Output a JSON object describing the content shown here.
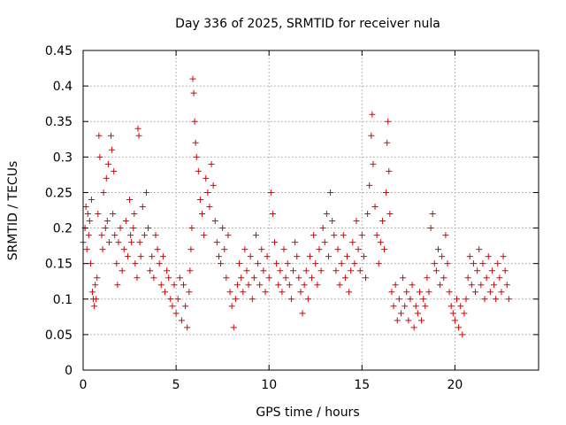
{
  "chart_data": {
    "type": "scatter",
    "title": "Day 336 of 2025, SRMTID for receiver nula",
    "xlabel": "GPS time / hours",
    "ylabel": "SRMTID / TECUs",
    "xlim": [
      0,
      24.5
    ],
    "ylim": [
      0,
      0.45
    ],
    "xticks": [
      0,
      5,
      10,
      15,
      20
    ],
    "xtick_labels": [
      "0",
      "5",
      "10",
      "15",
      "20"
    ],
    "yticks": [
      0,
      0.05,
      0.1,
      0.15,
      0.2,
      0.25,
      0.3,
      0.35,
      0.4,
      0.45
    ],
    "ytick_labels": [
      "0",
      "0.05",
      "0.1",
      "0.15",
      "0.2",
      "0.25",
      "0.3",
      "0.35",
      "0.4",
      "0.45"
    ],
    "grid": true,
    "marker": "plus",
    "series_color": "#e00000",
    "series": [
      {
        "name": "SRMTID",
        "points": [
          [
            0.0,
            0.18
          ],
          [
            0.1,
            0.2
          ],
          [
            0.15,
            0.23
          ],
          [
            0.2,
            0.17
          ],
          [
            0.25,
            0.22
          ],
          [
            0.3,
            0.19
          ],
          [
            0.35,
            0.21
          ],
          [
            0.4,
            0.15
          ],
          [
            0.45,
            0.24
          ],
          [
            0.5,
            0.11
          ],
          [
            0.55,
            0.1
          ],
          [
            0.6,
            0.09
          ],
          [
            0.65,
            0.12
          ],
          [
            0.7,
            0.1
          ],
          [
            0.75,
            0.13
          ],
          [
            0.8,
            0.22
          ],
          [
            0.85,
            0.33
          ],
          [
            0.9,
            0.3
          ],
          [
            1.0,
            0.19
          ],
          [
            1.05,
            0.17
          ],
          [
            1.1,
            0.25
          ],
          [
            1.2,
            0.2
          ],
          [
            1.25,
            0.27
          ],
          [
            1.3,
            0.21
          ],
          [
            1.35,
            0.29
          ],
          [
            1.4,
            0.18
          ],
          [
            1.5,
            0.33
          ],
          [
            1.55,
            0.31
          ],
          [
            1.6,
            0.22
          ],
          [
            1.65,
            0.28
          ],
          [
            1.7,
            0.19
          ],
          [
            1.8,
            0.15
          ],
          [
            1.85,
            0.12
          ],
          [
            1.9,
            0.18
          ],
          [
            2.0,
            0.2
          ],
          [
            2.1,
            0.14
          ],
          [
            2.2,
            0.17
          ],
          [
            2.3,
            0.21
          ],
          [
            2.4,
            0.16
          ],
          [
            2.5,
            0.24
          ],
          [
            2.55,
            0.19
          ],
          [
            2.6,
            0.18
          ],
          [
            2.7,
            0.2
          ],
          [
            2.75,
            0.22
          ],
          [
            2.8,
            0.15
          ],
          [
            2.9,
            0.13
          ],
          [
            2.95,
            0.34
          ],
          [
            3.0,
            0.33
          ],
          [
            3.05,
            0.18
          ],
          [
            3.1,
            0.16
          ],
          [
            3.2,
            0.23
          ],
          [
            3.3,
            0.19
          ],
          [
            3.4,
            0.25
          ],
          [
            3.5,
            0.2
          ],
          [
            3.6,
            0.14
          ],
          [
            3.7,
            0.16
          ],
          [
            3.8,
            0.13
          ],
          [
            3.9,
            0.19
          ],
          [
            4.0,
            0.17
          ],
          [
            4.1,
            0.15
          ],
          [
            4.2,
            0.12
          ],
          [
            4.3,
            0.16
          ],
          [
            4.4,
            0.11
          ],
          [
            4.5,
            0.14
          ],
          [
            4.6,
            0.13
          ],
          [
            4.7,
            0.1
          ],
          [
            4.8,
            0.09
          ],
          [
            4.9,
            0.12
          ],
          [
            5.0,
            0.08
          ],
          [
            5.1,
            0.1
          ],
          [
            5.2,
            0.13
          ],
          [
            5.3,
            0.07
          ],
          [
            5.4,
            0.12
          ],
          [
            5.5,
            0.09
          ],
          [
            5.6,
            0.06
          ],
          [
            5.7,
            0.11
          ],
          [
            5.75,
            0.14
          ],
          [
            5.8,
            0.17
          ],
          [
            5.85,
            0.2
          ],
          [
            5.9,
            0.41
          ],
          [
            5.95,
            0.39
          ],
          [
            6.0,
            0.35
          ],
          [
            6.05,
            0.32
          ],
          [
            6.1,
            0.3
          ],
          [
            6.2,
            0.28
          ],
          [
            6.3,
            0.24
          ],
          [
            6.4,
            0.22
          ],
          [
            6.5,
            0.19
          ],
          [
            6.6,
            0.27
          ],
          [
            6.7,
            0.25
          ],
          [
            6.8,
            0.23
          ],
          [
            6.9,
            0.29
          ],
          [
            7.0,
            0.26
          ],
          [
            7.1,
            0.21
          ],
          [
            7.2,
            0.18
          ],
          [
            7.3,
            0.16
          ],
          [
            7.4,
            0.15
          ],
          [
            7.5,
            0.2
          ],
          [
            7.6,
            0.17
          ],
          [
            7.7,
            0.13
          ],
          [
            7.8,
            0.19
          ],
          [
            7.9,
            0.11
          ],
          [
            8.0,
            0.09
          ],
          [
            8.1,
            0.06
          ],
          [
            8.2,
            0.1
          ],
          [
            8.3,
            0.12
          ],
          [
            8.4,
            0.15
          ],
          [
            8.5,
            0.13
          ],
          [
            8.6,
            0.11
          ],
          [
            8.7,
            0.17
          ],
          [
            8.8,
            0.14
          ],
          [
            8.9,
            0.12
          ],
          [
            9.0,
            0.16
          ],
          [
            9.1,
            0.1
          ],
          [
            9.2,
            0.13
          ],
          [
            9.3,
            0.19
          ],
          [
            9.4,
            0.15
          ],
          [
            9.5,
            0.12
          ],
          [
            9.6,
            0.17
          ],
          [
            9.7,
            0.14
          ],
          [
            9.8,
            0.11
          ],
          [
            9.9,
            0.16
          ],
          [
            10.0,
            0.13
          ],
          [
            10.1,
            0.25
          ],
          [
            10.2,
            0.22
          ],
          [
            10.3,
            0.18
          ],
          [
            10.4,
            0.15
          ],
          [
            10.5,
            0.12
          ],
          [
            10.6,
            0.14
          ],
          [
            10.7,
            0.11
          ],
          [
            10.8,
            0.17
          ],
          [
            10.9,
            0.13
          ],
          [
            11.0,
            0.15
          ],
          [
            11.1,
            0.12
          ],
          [
            11.2,
            0.1
          ],
          [
            11.3,
            0.14
          ],
          [
            11.4,
            0.18
          ],
          [
            11.5,
            0.16
          ],
          [
            11.6,
            0.13
          ],
          [
            11.7,
            0.11
          ],
          [
            11.8,
            0.08
          ],
          [
            11.9,
            0.12
          ],
          [
            12.0,
            0.14
          ],
          [
            12.1,
            0.1
          ],
          [
            12.2,
            0.16
          ],
          [
            12.3,
            0.13
          ],
          [
            12.4,
            0.19
          ],
          [
            12.5,
            0.15
          ],
          [
            12.6,
            0.12
          ],
          [
            12.7,
            0.17
          ],
          [
            12.8,
            0.14
          ],
          [
            12.9,
            0.2
          ],
          [
            13.0,
            0.18
          ],
          [
            13.1,
            0.22
          ],
          [
            13.2,
            0.16
          ],
          [
            13.3,
            0.25
          ],
          [
            13.4,
            0.21
          ],
          [
            13.5,
            0.19
          ],
          [
            13.6,
            0.14
          ],
          [
            13.7,
            0.17
          ],
          [
            13.8,
            0.12
          ],
          [
            13.9,
            0.15
          ],
          [
            14.0,
            0.19
          ],
          [
            14.1,
            0.13
          ],
          [
            14.2,
            0.16
          ],
          [
            14.3,
            0.11
          ],
          [
            14.4,
            0.14
          ],
          [
            14.5,
            0.18
          ],
          [
            14.6,
            0.15
          ],
          [
            14.7,
            0.21
          ],
          [
            14.8,
            0.17
          ],
          [
            14.9,
            0.14
          ],
          [
            15.0,
            0.19
          ],
          [
            15.1,
            0.16
          ],
          [
            15.2,
            0.13
          ],
          [
            15.3,
            0.22
          ],
          [
            15.4,
            0.26
          ],
          [
            15.5,
            0.33
          ],
          [
            15.55,
            0.36
          ],
          [
            15.6,
            0.29
          ],
          [
            15.7,
            0.23
          ],
          [
            15.8,
            0.19
          ],
          [
            15.9,
            0.15
          ],
          [
            16.0,
            0.18
          ],
          [
            16.1,
            0.21
          ],
          [
            16.2,
            0.17
          ],
          [
            16.3,
            0.25
          ],
          [
            16.35,
            0.32
          ],
          [
            16.4,
            0.35
          ],
          [
            16.45,
            0.28
          ],
          [
            16.5,
            0.22
          ],
          [
            16.6,
            0.11
          ],
          [
            16.7,
            0.09
          ],
          [
            16.8,
            0.12
          ],
          [
            16.9,
            0.07
          ],
          [
            17.0,
            0.1
          ],
          [
            17.1,
            0.08
          ],
          [
            17.2,
            0.13
          ],
          [
            17.3,
            0.09
          ],
          [
            17.4,
            0.11
          ],
          [
            17.5,
            0.07
          ],
          [
            17.6,
            0.1
          ],
          [
            17.7,
            0.12
          ],
          [
            17.8,
            0.06
          ],
          [
            17.9,
            0.09
          ],
          [
            18.0,
            0.08
          ],
          [
            18.1,
            0.11
          ],
          [
            18.2,
            0.07
          ],
          [
            18.3,
            0.1
          ],
          [
            18.4,
            0.09
          ],
          [
            18.5,
            0.13
          ],
          [
            18.6,
            0.11
          ],
          [
            18.7,
            0.2
          ],
          [
            18.8,
            0.22
          ],
          [
            18.9,
            0.15
          ],
          [
            19.0,
            0.14
          ],
          [
            19.1,
            0.17
          ],
          [
            19.2,
            0.12
          ],
          [
            19.3,
            0.16
          ],
          [
            19.4,
            0.13
          ],
          [
            19.5,
            0.19
          ],
          [
            19.6,
            0.15
          ],
          [
            19.7,
            0.11
          ],
          [
            19.8,
            0.09
          ],
          [
            19.9,
            0.08
          ],
          [
            20.0,
            0.07
          ],
          [
            20.1,
            0.1
          ],
          [
            20.2,
            0.06
          ],
          [
            20.3,
            0.09
          ],
          [
            20.4,
            0.05
          ],
          [
            20.5,
            0.08
          ],
          [
            20.6,
            0.1
          ],
          [
            20.7,
            0.13
          ],
          [
            20.8,
            0.16
          ],
          [
            20.9,
            0.12
          ],
          [
            21.0,
            0.15
          ],
          [
            21.1,
            0.11
          ],
          [
            21.2,
            0.14
          ],
          [
            21.3,
            0.17
          ],
          [
            21.4,
            0.12
          ],
          [
            21.5,
            0.15
          ],
          [
            21.6,
            0.1
          ],
          [
            21.7,
            0.13
          ],
          [
            21.8,
            0.16
          ],
          [
            21.9,
            0.11
          ],
          [
            22.0,
            0.14
          ],
          [
            22.1,
            0.12
          ],
          [
            22.2,
            0.1
          ],
          [
            22.3,
            0.15
          ],
          [
            22.4,
            0.13
          ],
          [
            22.5,
            0.11
          ],
          [
            22.6,
            0.16
          ],
          [
            22.7,
            0.14
          ],
          [
            22.8,
            0.12
          ],
          [
            22.9,
            0.1
          ]
        ]
      }
    ]
  }
}
